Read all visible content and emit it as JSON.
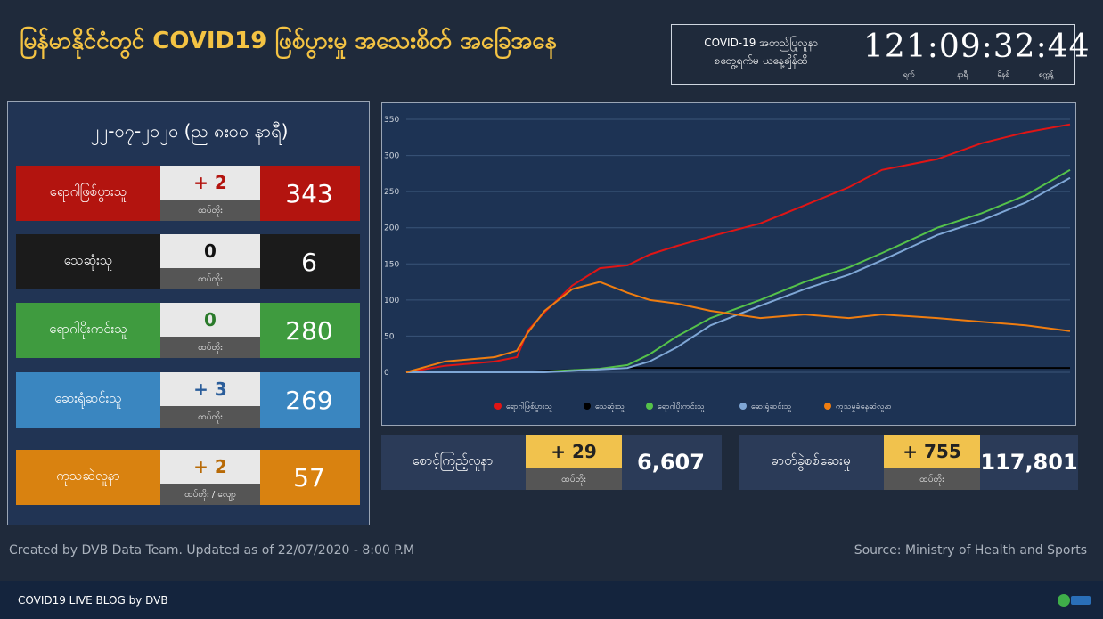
{
  "header": {
    "title": "မြန်မာနိုင်ငံတွင် COVID19 ဖြစ်ပွားမှု အသေးစိတ် အခြေအနေ",
    "timer_caption": [
      "COVID-19 အတည်ပြုလူနာ",
      "စတွေ့ရက်မှ ယနေ့ချိန်ထိ"
    ],
    "timer": "121:09:32:44",
    "timer_units": [
      "ရက်",
      "နာရီ",
      "မိနစ်",
      "စက္ကန့်"
    ]
  },
  "panel": {
    "date": "၂၂-၀၇-၂၀၂၀ (ည ၈း၀၀ နာရီ)",
    "rows": [
      {
        "label": "ရောဂါဖြစ်ပွားသူ",
        "change": "+ 2",
        "note": "ထပ်တိုး",
        "total": "343"
      },
      {
        "label": "သေဆုံးသူ",
        "change": "0",
        "note": "ထပ်တိုး",
        "total": "6"
      },
      {
        "label": "ရောဂါပိုးကင်းသူ",
        "change": "0",
        "note": "ထပ်တိုး",
        "total": "280"
      },
      {
        "label": "ဆေးရုံဆင်းသူ",
        "change": "+ 3",
        "note": "ထပ်တိုး",
        "total": "269"
      },
      {
        "label": "ကုသဆဲလူနာ",
        "change": "+ 2",
        "note": "ထပ်တိုး / လျော့",
        "total": "57"
      }
    ]
  },
  "boxes": [
    {
      "label": "စောင့်ကြည့်လူနာ",
      "change": "+ 29",
      "note": "ထပ်တိုး",
      "total": "6,607"
    },
    {
      "label": "ဓာတ်ခွဲစစ်ဆေးမှု",
      "change": "+ 755",
      "note": "ထပ်တိုး",
      "total": "117,801"
    }
  ],
  "footer": {
    "credit": "Created by DVB Data Team. Updated as of 22/07/2020 - 8:00 P.M",
    "source": "Source: Ministry of Health and Sports",
    "blog": "COVID19 LIVE BLOG by DVB"
  },
  "chart_data": {
    "type": "line",
    "x": [
      0,
      7,
      16,
      20,
      22,
      25,
      30,
      35,
      40,
      44,
      49,
      55,
      64,
      72,
      80,
      86,
      96,
      104,
      112,
      120
    ],
    "xlim": [
      0,
      120
    ],
    "ylim": [
      0,
      350
    ],
    "yticks": [
      0,
      50,
      100,
      150,
      200,
      250,
      300,
      350
    ],
    "grid": true,
    "series": [
      {
        "name": "ရောဂါဖြစ်ပွားသူ",
        "color": "#e01515",
        "values": [
          0,
          9,
          15,
          21,
          58,
          83,
          120,
          144,
          148,
          163,
          175,
          188,
          206,
          231,
          256,
          280,
          295,
          317,
          332,
          343
        ]
      },
      {
        "name": "သေဆုံးသူ",
        "color": "#000000",
        "values": [
          0,
          0,
          0,
          1,
          1,
          2,
          3,
          5,
          6,
          6,
          6,
          6,
          6,
          6,
          6,
          6,
          6,
          6,
          6,
          6
        ]
      },
      {
        "name": "ရောဂါပိုးကင်းသူ",
        "color": "#55c24a",
        "values": [
          0,
          0,
          0,
          0,
          0,
          1,
          3,
          5,
          10,
          25,
          50,
          75,
          100,
          125,
          145,
          165,
          200,
          220,
          245,
          280
        ]
      },
      {
        "name": "ဆေးရုံဆင်းသူ",
        "color": "#7fa7d6",
        "values": [
          0,
          0,
          0,
          0,
          0,
          0,
          2,
          4,
          6,
          15,
          35,
          65,
          92,
          115,
          135,
          155,
          190,
          210,
          235,
          269
        ]
      },
      {
        "name": "ကုသမှုခံနေဆဲလူနာ",
        "color": "#ef7d10",
        "values": [
          0,
          15,
          21,
          30,
          55,
          85,
          115,
          125,
          110,
          100,
          95,
          85,
          75,
          80,
          75,
          80,
          75,
          70,
          65,
          57
        ]
      }
    ]
  }
}
